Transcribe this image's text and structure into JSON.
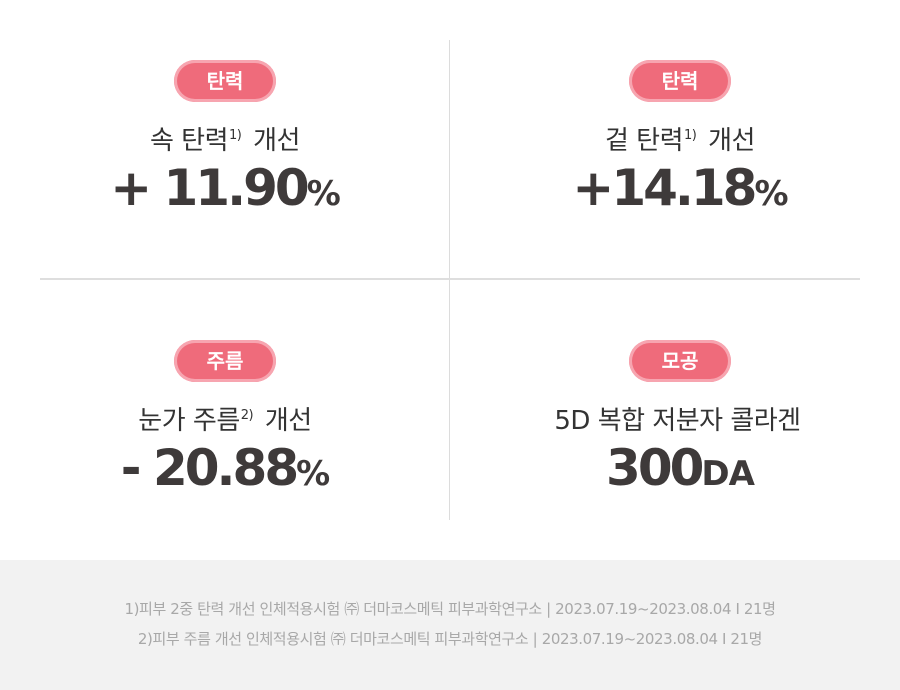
{
  "cards": [
    {
      "badge": "탄력",
      "label": "속 탄력",
      "sup": "1)",
      "label_suffix": "개선",
      "value": "+ 11.90",
      "unit": "%"
    },
    {
      "badge": "탄력",
      "label": "겉 탄력",
      "sup": "1)",
      "label_suffix": "개선",
      "value": "+14.18",
      "unit": "%"
    },
    {
      "badge": "주름",
      "label": "눈가 주름",
      "sup": "2)",
      "label_suffix": "개선",
      "value": "- 20.88",
      "unit": "%"
    },
    {
      "badge": "모공",
      "label": "5D 복합 저분자 콜라겐",
      "sup": "",
      "label_suffix": "",
      "value": "300",
      "unit": "DA"
    }
  ],
  "footnotes": [
    "1)피부 2중 탄력 개선 인체적용시험  ㈜ 더마코스메틱 피부과학연구소 | 2023.07.19~2023.08.04 I 21명",
    "2)피부 주름 개선 인체적용시험  ㈜ 더마코스메틱 피부과학연구소 | 2023.07.19~2023.08.04 I 21명"
  ],
  "colors": {
    "badge": "#ef6b7b",
    "badge_border": "#f7a5b0",
    "value_text": "#3e3a3a",
    "footer_bg": "#f2f2f2"
  }
}
